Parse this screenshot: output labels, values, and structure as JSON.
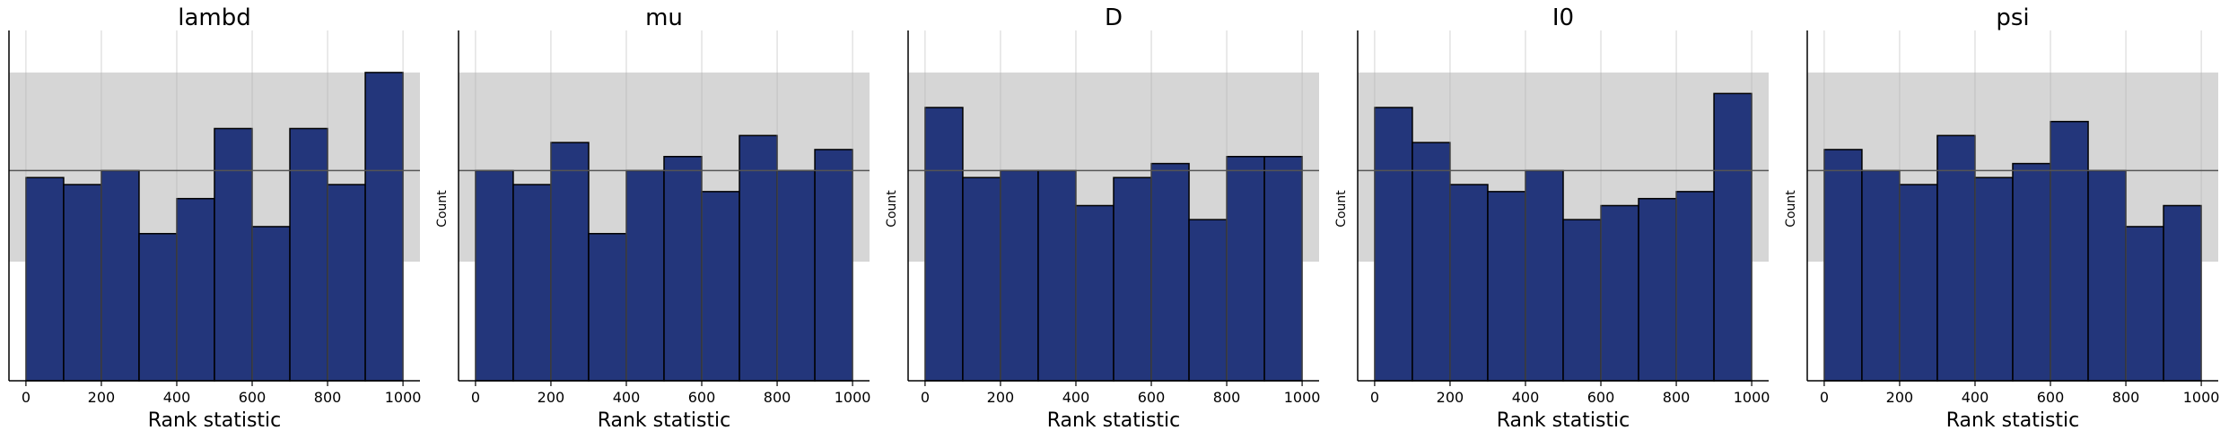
{
  "colors": {
    "bar_fill": "#1f3278",
    "bar_edge": "#000000",
    "band": "#d6d6d6",
    "grid": "#b0b0b0",
    "mean_line": "#555555",
    "axis": "#000000"
  },
  "chart_data": [
    {
      "type": "bar",
      "title": "lambd",
      "xlabel": "Rank statistic",
      "ylabel": "",
      "bin_edges": [
        0,
        100,
        200,
        300,
        400,
        500,
        600,
        700,
        800,
        900,
        1000
      ],
      "values": [
        29,
        28,
        30,
        21,
        26,
        36,
        22,
        36,
        28,
        44
      ],
      "expected": 30,
      "band": [
        17,
        44
      ],
      "xlim": [
        -45,
        1045
      ],
      "ylim": [
        0,
        50
      ],
      "xticks": [
        "0",
        "200",
        "400",
        "600",
        "800",
        "1000"
      ],
      "grid": true
    },
    {
      "type": "bar",
      "title": "mu",
      "xlabel": "Rank statistic",
      "ylabel": "Count",
      "bin_edges": [
        0,
        100,
        200,
        300,
        400,
        500,
        600,
        700,
        800,
        900,
        1000
      ],
      "values": [
        30,
        28,
        34,
        21,
        30,
        32,
        27,
        35,
        30,
        33
      ],
      "expected": 30,
      "band": [
        17,
        44
      ],
      "xlim": [
        -45,
        1045
      ],
      "ylim": [
        0,
        50
      ],
      "xticks": [
        "0",
        "200",
        "400",
        "600",
        "800",
        "1000"
      ],
      "grid": true
    },
    {
      "type": "bar",
      "title": "D",
      "xlabel": "Rank statistic",
      "ylabel": "Count",
      "bin_edges": [
        0,
        100,
        200,
        300,
        400,
        500,
        600,
        700,
        800,
        900,
        1000
      ],
      "values": [
        39,
        29,
        30,
        30,
        25,
        29,
        31,
        23,
        32,
        32
      ],
      "expected": 30,
      "band": [
        17,
        44
      ],
      "xlim": [
        -45,
        1045
      ],
      "ylim": [
        0,
        50
      ],
      "xticks": [
        "0",
        "200",
        "400",
        "600",
        "800",
        "1000"
      ],
      "grid": true
    },
    {
      "type": "bar",
      "title": "I0",
      "xlabel": "Rank statistic",
      "ylabel": "Count",
      "bin_edges": [
        0,
        100,
        200,
        300,
        400,
        500,
        600,
        700,
        800,
        900,
        1000
      ],
      "values": [
        39,
        34,
        28,
        27,
        30,
        23,
        25,
        26,
        27,
        41
      ],
      "expected": 30,
      "band": [
        17,
        44
      ],
      "xlim": [
        -45,
        1045
      ],
      "ylim": [
        0,
        50
      ],
      "xticks": [
        "0",
        "200",
        "400",
        "600",
        "800",
        "1000"
      ],
      "grid": true
    },
    {
      "type": "bar",
      "title": "psi",
      "xlabel": "Rank statistic",
      "ylabel": "Count",
      "bin_edges": [
        0,
        100,
        200,
        300,
        400,
        500,
        600,
        700,
        800,
        900,
        1000
      ],
      "values": [
        33,
        30,
        28,
        35,
        29,
        31,
        37,
        30,
        22,
        25
      ],
      "expected": 30,
      "band": [
        17,
        44
      ],
      "xlim": [
        -45,
        1045
      ],
      "ylim": [
        0,
        50
      ],
      "xticks": [
        "0",
        "200",
        "400",
        "600",
        "800",
        "1000"
      ],
      "grid": true
    }
  ]
}
